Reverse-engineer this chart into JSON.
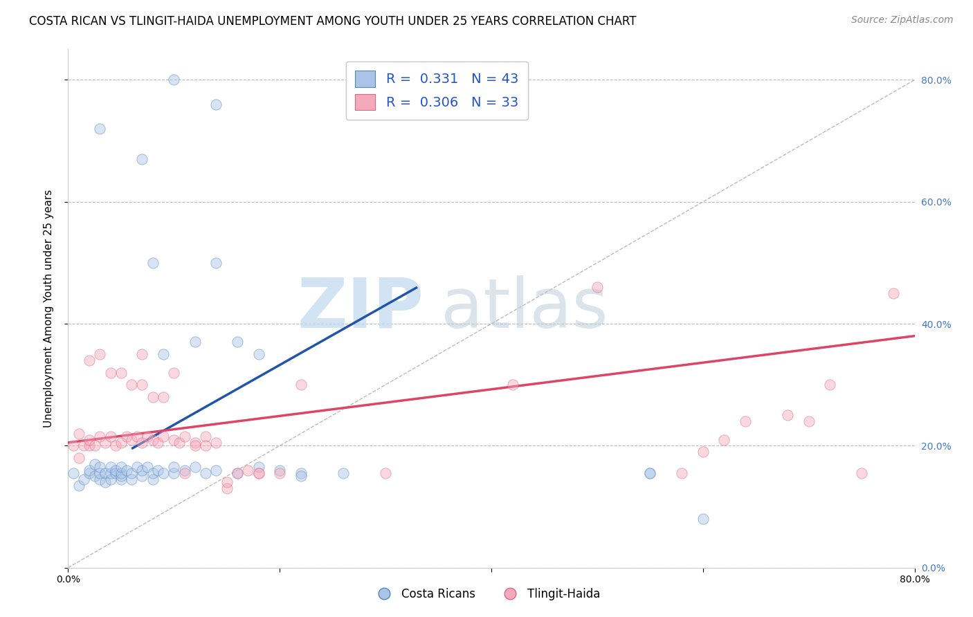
{
  "title": "COSTA RICAN VS TLINGIT-HAIDA UNEMPLOYMENT AMONG YOUTH UNDER 25 YEARS CORRELATION CHART",
  "source": "Source: ZipAtlas.com",
  "ylabel": "Unemployment Among Youth under 25 years",
  "xlim": [
    0.0,
    0.8
  ],
  "ylim": [
    0.0,
    0.85
  ],
  "xticks": [
    0.0,
    0.2,
    0.4,
    0.6,
    0.8
  ],
  "yticks": [
    0.0,
    0.2,
    0.4,
    0.6,
    0.8
  ],
  "xtick_labels": [
    "0.0%",
    "",
    "",
    "",
    "80.0%"
  ],
  "ytick_labels_right": [
    "0.0%",
    "20.0%",
    "40.0%",
    "60.0%",
    "80.0%"
  ],
  "blue_color": "#AAC4E8",
  "pink_color": "#F4AABB",
  "blue_edge": "#5588BB",
  "pink_edge": "#DD6688",
  "blue_label": "Costa Ricans",
  "pink_label": "Tlingit-Haida",
  "blue_R": 0.331,
  "blue_N": 43,
  "pink_R": 0.306,
  "pink_N": 33,
  "watermark_zip": "ZIP",
  "watermark_atlas": "atlas",
  "blue_scatter_x": [
    0.005,
    0.01,
    0.015,
    0.02,
    0.02,
    0.025,
    0.025,
    0.03,
    0.03,
    0.03,
    0.035,
    0.035,
    0.04,
    0.04,
    0.04,
    0.045,
    0.045,
    0.05,
    0.05,
    0.05,
    0.05,
    0.055,
    0.06,
    0.06,
    0.065,
    0.07,
    0.07,
    0.075,
    0.08,
    0.08,
    0.085,
    0.09,
    0.1,
    0.1,
    0.11,
    0.12,
    0.13,
    0.14,
    0.16,
    0.18,
    0.2,
    0.22,
    0.55
  ],
  "blue_scatter_y": [
    0.155,
    0.135,
    0.145,
    0.155,
    0.16,
    0.15,
    0.17,
    0.145,
    0.155,
    0.165,
    0.14,
    0.155,
    0.145,
    0.155,
    0.165,
    0.155,
    0.16,
    0.145,
    0.15,
    0.155,
    0.165,
    0.16,
    0.145,
    0.155,
    0.165,
    0.15,
    0.16,
    0.165,
    0.145,
    0.155,
    0.16,
    0.155,
    0.155,
    0.165,
    0.16,
    0.165,
    0.155,
    0.16,
    0.155,
    0.165,
    0.16,
    0.155,
    0.155
  ],
  "blue_scatter_x2": [
    0.03,
    0.07,
    0.08,
    0.09,
    0.1,
    0.12,
    0.14,
    0.14,
    0.16,
    0.18,
    0.22,
    0.26,
    0.55,
    0.6
  ],
  "blue_scatter_y2": [
    0.72,
    0.67,
    0.5,
    0.35,
    0.8,
    0.37,
    0.76,
    0.5,
    0.37,
    0.35,
    0.15,
    0.155,
    0.155,
    0.08
  ],
  "pink_scatter_x": [
    0.005,
    0.01,
    0.015,
    0.02,
    0.02,
    0.025,
    0.03,
    0.035,
    0.04,
    0.045,
    0.05,
    0.055,
    0.06,
    0.065,
    0.07,
    0.075,
    0.08,
    0.085,
    0.09,
    0.1,
    0.105,
    0.11,
    0.12,
    0.13,
    0.14,
    0.15,
    0.16,
    0.17,
    0.18
  ],
  "pink_scatter_y": [
    0.2,
    0.22,
    0.2,
    0.2,
    0.21,
    0.2,
    0.215,
    0.205,
    0.215,
    0.2,
    0.205,
    0.215,
    0.21,
    0.215,
    0.205,
    0.215,
    0.21,
    0.205,
    0.215,
    0.21,
    0.205,
    0.215,
    0.205,
    0.215,
    0.205,
    0.13,
    0.155,
    0.16,
    0.155
  ],
  "pink_scatter_x2": [
    0.01,
    0.02,
    0.03,
    0.04,
    0.05,
    0.06,
    0.07,
    0.07,
    0.08,
    0.09,
    0.1,
    0.11,
    0.12,
    0.13,
    0.15,
    0.18,
    0.2,
    0.22,
    0.3,
    0.42,
    0.5,
    0.58,
    0.6,
    0.62,
    0.64,
    0.68,
    0.7,
    0.72,
    0.75,
    0.78
  ],
  "pink_scatter_y2": [
    0.18,
    0.34,
    0.35,
    0.32,
    0.32,
    0.3,
    0.3,
    0.35,
    0.28,
    0.28,
    0.32,
    0.155,
    0.2,
    0.2,
    0.14,
    0.155,
    0.155,
    0.3,
    0.155,
    0.3,
    0.46,
    0.155,
    0.19,
    0.21,
    0.24,
    0.25,
    0.24,
    0.3,
    0.155,
    0.45
  ],
  "blue_trend_x": [
    0.06,
    0.33
  ],
  "blue_trend_y": [
    0.195,
    0.46
  ],
  "pink_trend_x": [
    0.0,
    0.8
  ],
  "pink_trend_y": [
    0.205,
    0.38
  ],
  "diag_line_x": [
    0.0,
    0.8
  ],
  "diag_line_y": [
    0.0,
    0.8
  ],
  "title_fontsize": 12,
  "axis_label_fontsize": 11,
  "tick_fontsize": 10,
  "legend_fontsize": 14,
  "source_fontsize": 10,
  "marker_size": 120,
  "marker_alpha": 0.45,
  "background_color": "#FFFFFF",
  "grid_color": "#BBBBBB",
  "grid_linestyle": "--",
  "watermark_color_zip": "#C0D8EE",
  "watermark_color_atlas": "#B8C8D8",
  "watermark_fontsize": 72
}
